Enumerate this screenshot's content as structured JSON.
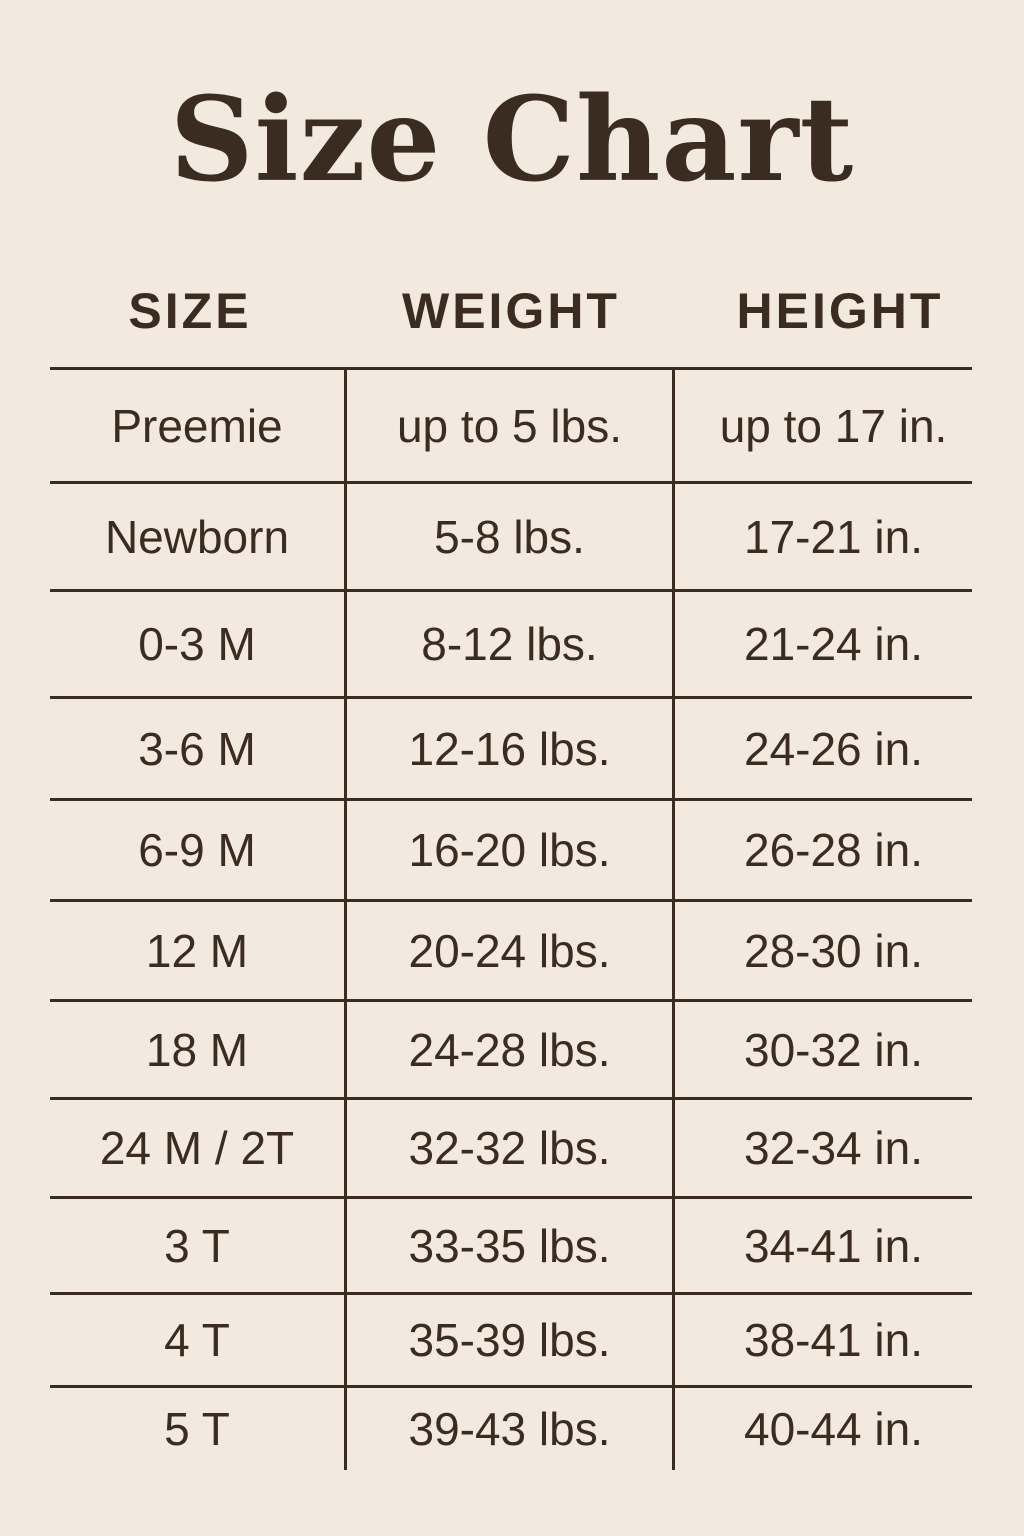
{
  "title": "Size Chart",
  "columns": [
    "SIZE",
    "WEIGHT",
    "HEIGHT"
  ],
  "rows": [
    [
      "Preemie",
      "up to 5 lbs.",
      "up to 17 in."
    ],
    [
      "Newborn",
      "5-8 lbs.",
      "17-21 in."
    ],
    [
      "0-3 M",
      "8-12 lbs.",
      "21-24 in."
    ],
    [
      "3-6 M",
      "12-16 lbs.",
      "24-26 in."
    ],
    [
      "6-9 M",
      "16-20 lbs.",
      "26-28 in."
    ],
    [
      "12 M",
      "20-24 lbs.",
      "28-30 in."
    ],
    [
      "18 M",
      "24-28 lbs.",
      "30-32 in."
    ],
    [
      "24 M / 2T",
      "32-32 lbs.",
      "32-34 in."
    ],
    [
      "3 T",
      "33-35 lbs.",
      "34-41 in."
    ],
    [
      "4 T",
      "35-39 lbs.",
      "38-41 in."
    ],
    [
      "5 T",
      "39-43 lbs.",
      "40-44 in."
    ]
  ],
  "colors": {
    "background": "#f2eadf",
    "text": "#3b2c22"
  }
}
